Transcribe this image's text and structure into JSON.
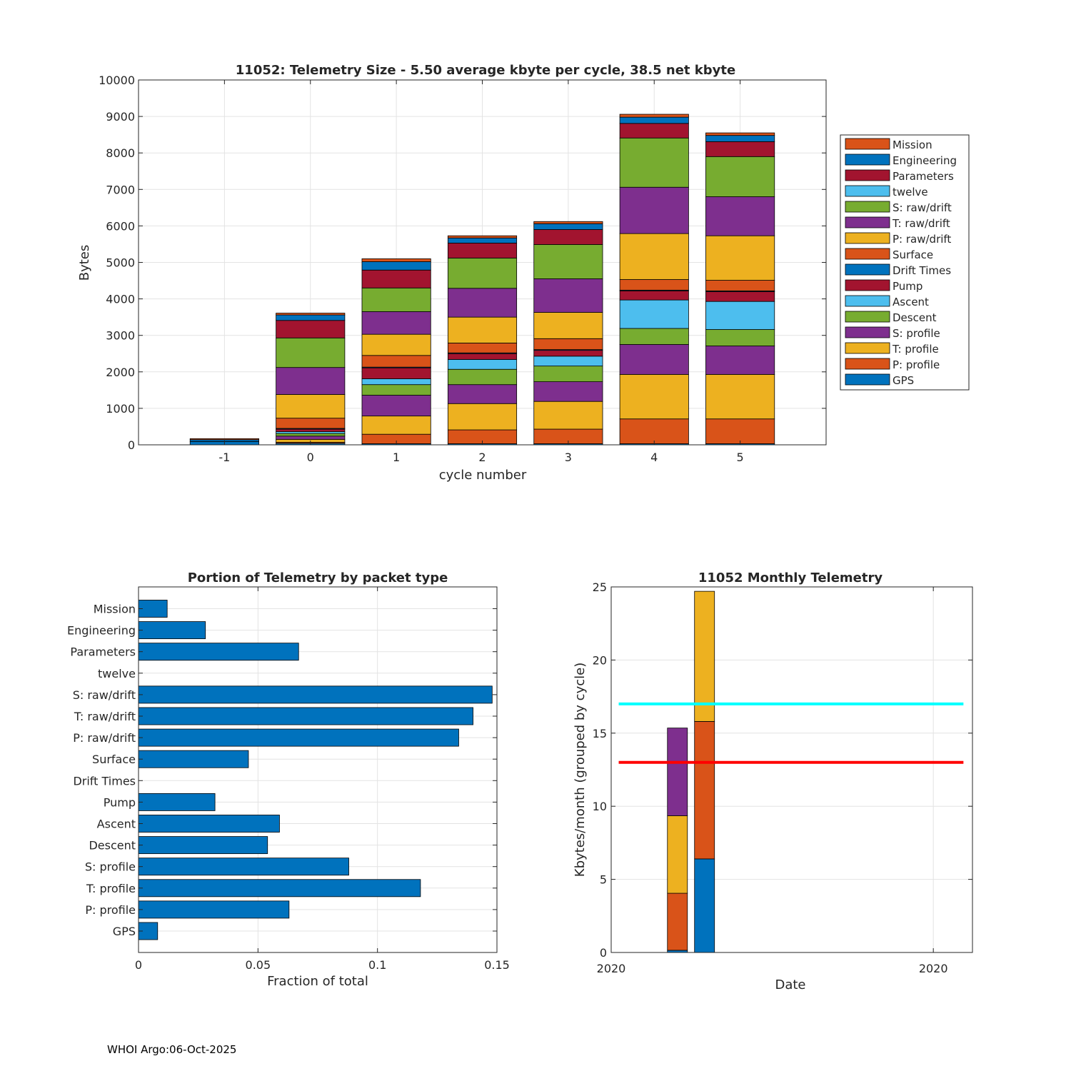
{
  "chart_data": [
    {
      "type": "bar",
      "stacked": true,
      "title": "11052: Telemetry Size - 5.50 average kbyte per cycle,   38.5 net kbyte",
      "xlabel": "cycle number",
      "ylabel": "Bytes",
      "ylim": [
        0,
        10000
      ],
      "yticks": [
        0,
        1000,
        2000,
        3000,
        4000,
        5000,
        6000,
        7000,
        8000,
        9000,
        10000
      ],
      "xlim": [
        -2,
        6
      ],
      "grid": true,
      "legend_position": "right",
      "categories": [
        "-1",
        "0",
        "1",
        "2",
        "3",
        "4",
        "5"
      ],
      "series": [
        {
          "name": "GPS",
          "color": "#0072BD",
          "values": [
            90,
            40,
            30,
            30,
            30,
            30,
            30
          ]
        },
        {
          "name": "P: profile",
          "color": "#D95319",
          "values": [
            0,
            30,
            260,
            380,
            400,
            680,
            680
          ]
        },
        {
          "name": "T: profile",
          "color": "#EDB120",
          "values": [
            0,
            80,
            500,
            720,
            760,
            1220,
            1220
          ]
        },
        {
          "name": "S: profile",
          "color": "#7E2F8E",
          "values": [
            0,
            90,
            570,
            520,
            540,
            820,
            780
          ]
        },
        {
          "name": "Descent",
          "color": "#77AC30",
          "values": [
            0,
            70,
            290,
            420,
            430,
            440,
            450
          ]
        },
        {
          "name": "Ascent",
          "color": "#4DBEEE",
          "values": [
            0,
            50,
            160,
            270,
            270,
            780,
            770
          ]
        },
        {
          "name": "Pump",
          "color": "#A2142F",
          "values": [
            0,
            70,
            300,
            160,
            160,
            250,
            270
          ]
        },
        {
          "name": "Drift Times",
          "color": "#0072BD",
          "values": [
            0,
            20,
            20,
            20,
            20,
            20,
            20
          ]
        },
        {
          "name": "Surface",
          "color": "#D95319",
          "values": [
            0,
            280,
            320,
            270,
            300,
            290,
            290
          ]
        },
        {
          "name": "P: raw/drift",
          "color": "#EDB120",
          "values": [
            0,
            650,
            580,
            710,
            720,
            1260,
            1220
          ]
        },
        {
          "name": "T: raw/drift",
          "color": "#7E2F8E",
          "values": [
            0,
            740,
            620,
            790,
            920,
            1270,
            1070
          ]
        },
        {
          "name": "S: raw/drift",
          "color": "#77AC30",
          "values": [
            0,
            810,
            650,
            830,
            940,
            1350,
            1100
          ]
        },
        {
          "name": "twelve",
          "color": "#4DBEEE",
          "values": [
            0,
            0,
            0,
            0,
            0,
            0,
            0
          ]
        },
        {
          "name": "Parameters",
          "color": "#A2142F",
          "values": [
            0,
            480,
            490,
            410,
            410,
            400,
            410
          ]
        },
        {
          "name": "Engineering",
          "color": "#0072BD",
          "values": [
            50,
            150,
            230,
            140,
            160,
            170,
            170
          ]
        },
        {
          "name": "Mission",
          "color": "#D95319",
          "values": [
            30,
            50,
            80,
            60,
            60,
            80,
            70
          ]
        }
      ]
    },
    {
      "type": "bar",
      "orientation": "horizontal",
      "title": "Portion of Telemetry by packet type",
      "xlabel": "Fraction of total",
      "ylabel": "",
      "xlim": [
        0,
        0.15
      ],
      "xticks": [
        0,
        0.05,
        0.1,
        0.15
      ],
      "xtick_labels": [
        "0",
        "0.05",
        "0.1",
        "0.15"
      ],
      "grid": true,
      "color": "#0072BD",
      "categories": [
        "Mission",
        "Engineering",
        "Parameters",
        "twelve",
        "S: raw/drift",
        "T: raw/drift",
        "P: raw/drift",
        "Surface",
        "Drift Times",
        "Pump",
        "Ascent",
        "Descent",
        "S: profile",
        "T: profile",
        "P: profile",
        "GPS"
      ],
      "values": [
        0.012,
        0.028,
        0.067,
        0.0,
        0.148,
        0.14,
        0.134,
        0.046,
        0.0,
        0.032,
        0.059,
        0.054,
        0.088,
        0.118,
        0.063,
        0.008
      ]
    },
    {
      "type": "bar",
      "stacked": true,
      "title": "11052 Monthly Telemetry",
      "xlabel": "Date",
      "ylabel": "Kbytes/month (grouped by cycle)",
      "ylim": [
        0,
        25
      ],
      "yticks": [
        0,
        5,
        10,
        15,
        20,
        25
      ],
      "xlim": [
        0,
        12
      ],
      "xtick_values": [
        0,
        10.7
      ],
      "xtick_labels": [
        "2020",
        "2020"
      ],
      "grid": true,
      "bars": [
        {
          "x": 2.2,
          "segments": [
            {
              "color": "#0072BD",
              "value": 0.15
            },
            {
              "color": "#D95319",
              "value": 3.9
            },
            {
              "color": "#EDB120",
              "value": 5.3
            },
            {
              "color": "#7E2F8E",
              "value": 6.0
            }
          ]
        },
        {
          "x": 3.1,
          "segments": [
            {
              "color": "#0072BD",
              "value": 6.4
            },
            {
              "color": "#D95319",
              "value": 9.4
            },
            {
              "color": "#EDB120",
              "value": 8.9
            }
          ]
        }
      ],
      "reference_lines": [
        {
          "value": 17,
          "color": "#00FFFF"
        },
        {
          "value": 13,
          "color": "#FF0000"
        }
      ]
    }
  ],
  "footer": "WHOI Argo:06-Oct-2025"
}
